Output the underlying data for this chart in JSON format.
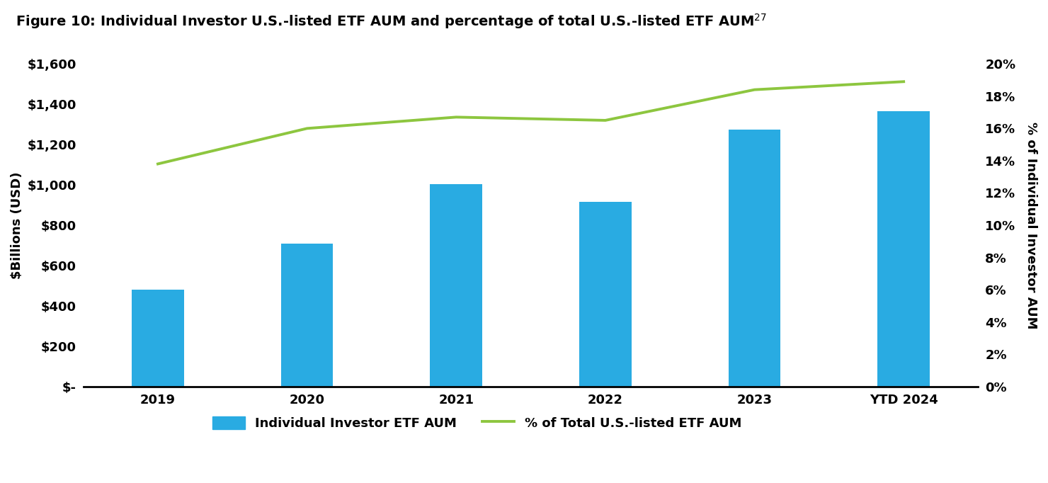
{
  "categories": [
    "2019",
    "2020",
    "2021",
    "2022",
    "2023",
    "YTD 2024"
  ],
  "bar_values": [
    480,
    710,
    1005,
    915,
    1275,
    1365
  ],
  "line_values": [
    0.138,
    0.16,
    0.167,
    0.165,
    0.184,
    0.189
  ],
  "bar_color": "#29ABE2",
  "line_color": "#8DC63F",
  "title": "Figure 10: Individual Investor U.S.-listed ETF AUM and percentage of total U.S.-listed ETF AUM",
  "title_superscript": "27",
  "ylabel_left": "$Billions (USD)",
  "ylabel_right": "% of Individual Investor AUM",
  "ylim_left": [
    0,
    1600
  ],
  "ylim_right": [
    0,
    0.2
  ],
  "yticks_left": [
    0,
    200,
    400,
    600,
    800,
    1000,
    1200,
    1400,
    1600
  ],
  "ytick_labels_left": [
    "$-",
    "$200",
    "$400",
    "$600",
    "$800",
    "$1,000",
    "$1,200",
    "$1,400",
    "$1,600"
  ],
  "yticks_right": [
    0,
    0.02,
    0.04,
    0.06,
    0.08,
    0.1,
    0.12,
    0.14,
    0.16,
    0.18,
    0.2
  ],
  "ytick_labels_right": [
    "0%",
    "2%",
    "4%",
    "6%",
    "8%",
    "10%",
    "12%",
    "14%",
    "16%",
    "18%",
    "20%"
  ],
  "legend_label_bar": "Individual Investor ETF AUM",
  "legend_label_line": "% of Total U.S.-listed ETF AUM",
  "background_color": "#ffffff",
  "bar_width": 0.35,
  "title_fontsize": 14,
  "tick_fontsize": 13,
  "label_fontsize": 13
}
